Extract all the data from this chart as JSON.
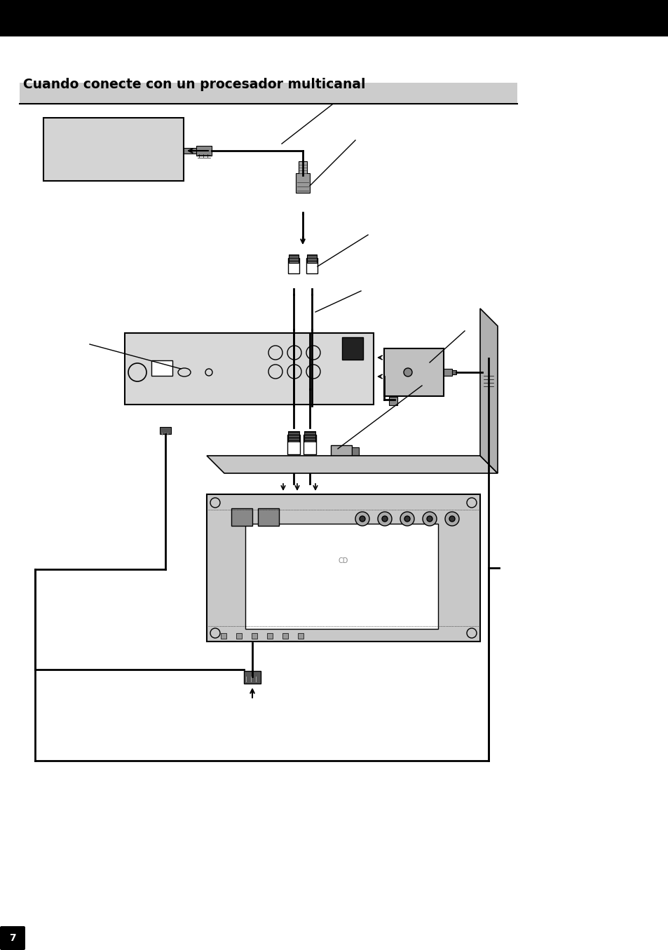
{
  "title": "Cuando conecte con un procesador multicanal",
  "title_fontsize": 13.5,
  "background_color": "#ffffff",
  "header_bar_color": "#000000",
  "title_bar_color": "#cccccc",
  "page_number": "7",
  "fig_width": 9.54,
  "fig_height": 13.55,
  "dpi": 100
}
